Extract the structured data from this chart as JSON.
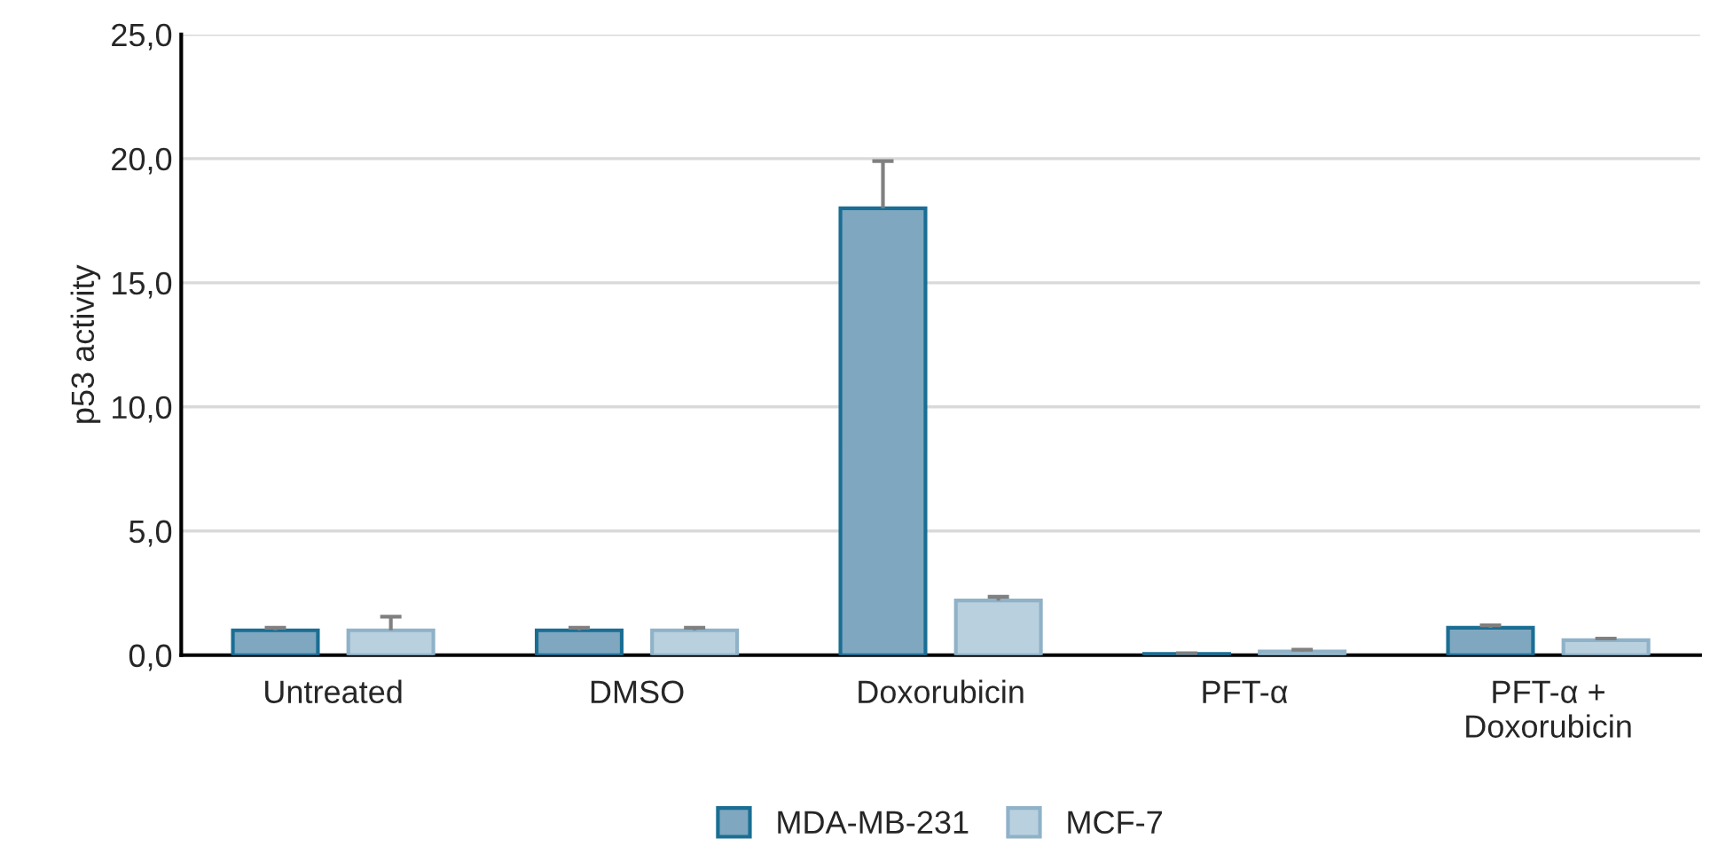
{
  "chart_data": {
    "type": "bar",
    "ylabel": "p53 activity",
    "categories": [
      "Untreated",
      "DMSO",
      "Doxorubicin",
      "PFT-α",
      "PFT-α +\nDoxorubicin"
    ],
    "series": [
      {
        "name": "MDA-MB-231",
        "color": "#7fa7c0",
        "values": [
          1.0,
          1.0,
          18.0,
          0.05,
          1.1
        ],
        "errors": [
          [
            1.0,
            1.1
          ],
          [
            1.0,
            1.1
          ],
          [
            18.0,
            19.9
          ],
          [
            0.05,
            0.08
          ],
          [
            1.1,
            1.2
          ]
        ]
      },
      {
        "name": "MCF-7",
        "color": "#b9d0de",
        "values": [
          1.0,
          1.0,
          2.2,
          0.15,
          0.6
        ],
        "errors": [
          [
            1.0,
            1.55
          ],
          [
            1.0,
            1.1
          ],
          [
            2.2,
            2.35
          ],
          [
            0.15,
            0.22
          ],
          [
            0.6,
            0.67
          ]
        ]
      }
    ],
    "ylim": [
      0,
      25
    ],
    "yticks": [
      {
        "value": 0,
        "label": "0,0"
      },
      {
        "value": 5,
        "label": "5,0"
      },
      {
        "value": 10,
        "label": "10,0"
      },
      {
        "value": 15,
        "label": "15,0"
      },
      {
        "value": 20,
        "label": "20,0"
      },
      {
        "value": 25,
        "label": "25,0"
      }
    ],
    "grid": "y",
    "legend": "bottom"
  }
}
